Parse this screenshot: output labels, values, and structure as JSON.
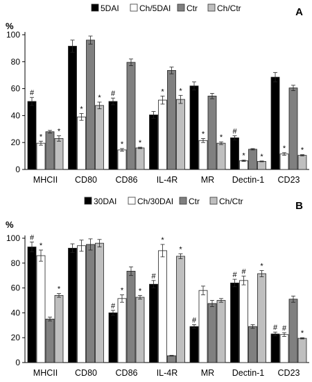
{
  "chart_data": [
    {
      "type": "bar",
      "panel_label": "A",
      "unit_label": "%",
      "categories": [
        "MHCII",
        "CD80",
        "CD86",
        "IL-4R",
        "MR",
        "Dectin-1",
        "CD23"
      ],
      "ylim": [
        0,
        100
      ],
      "yticks": [
        "0",
        "20",
        "40",
        "60",
        "80",
        "100"
      ],
      "legend_placement": "top",
      "grid": false,
      "series": [
        {
          "name": "5DAI",
          "color": "#000000",
          "values": [
            50.5,
            91.5,
            50.5,
            40.5,
            62,
            23.5,
            68.5
          ],
          "errors": [
            3,
            4.5,
            2.5,
            2.5,
            3,
            1.5,
            3.5
          ],
          "marks": [
            "#",
            "",
            "#",
            "",
            "",
            "#",
            ""
          ]
        },
        {
          "name": "Ch/5DAI",
          "color": "#ffffff",
          "values": [
            19.5,
            39,
            14.5,
            51.5,
            21.5,
            6.5,
            11.5
          ],
          "errors": [
            1.5,
            2.5,
            1,
            3,
            1.5,
            0.5,
            1
          ],
          "marks": [
            "*",
            "*",
            "*",
            "*",
            "*",
            "*",
            "*"
          ]
        },
        {
          "name": "Ctr",
          "color": "#808080",
          "values": [
            28,
            96,
            79.5,
            73.5,
            54.5,
            15,
            60.5
          ],
          "errors": [
            1,
            3,
            2.5,
            2.5,
            2,
            0.5,
            2
          ],
          "marks": [
            "",
            "",
            "",
            "",
            "",
            "",
            ""
          ]
        },
        {
          "name": "Ch/Ctr",
          "color": "#bfbfbf",
          "values": [
            23,
            47.5,
            16,
            52,
            19.5,
            6,
            10.5
          ],
          "errors": [
            2,
            2.5,
            0.5,
            3,
            1,
            0.3,
            0.5
          ],
          "marks": [
            "*",
            "*",
            "*",
            "*",
            "*",
            "*",
            "*"
          ]
        }
      ]
    },
    {
      "type": "bar",
      "panel_label": "B",
      "unit_label": "%",
      "categories": [
        "MHCII",
        "CD80",
        "CD86",
        "IL-4R",
        "MR",
        "Dectin-1",
        "CD23"
      ],
      "ylim": [
        0,
        100
      ],
      "yticks": [
        "0",
        "20",
        "40",
        "60",
        "80",
        "100"
      ],
      "legend_placement": "top",
      "grid": false,
      "series": [
        {
          "name": "30DAI",
          "color": "#000000",
          "values": [
            93,
            92,
            40,
            63,
            29,
            64,
            23
          ],
          "errors": [
            4,
            3.5,
            2,
            3,
            1.5,
            3,
            1.5
          ],
          "marks": [
            "#",
            "",
            "#",
            "#",
            "#",
            "#",
            "#"
          ]
        },
        {
          "name": "Ch/30DAI",
          "color": "#ffffff",
          "values": [
            86,
            94,
            51.5,
            90,
            58,
            66,
            22.5
          ],
          "errors": [
            4.5,
            4.5,
            3,
            5,
            3.5,
            3.5,
            1.5
          ],
          "marks": [
            "*",
            "",
            "*",
            "*",
            "",
            "#",
            "#"
          ]
        },
        {
          "name": "Ctr",
          "color": "#808080",
          "values": [
            35,
            95,
            73.5,
            5.5,
            47.5,
            29,
            51
          ],
          "errors": [
            1.5,
            4.5,
            3.5,
            0.3,
            2.5,
            1.5,
            2.5
          ],
          "marks": [
            "",
            "",
            "",
            "",
            "",
            "",
            ""
          ]
        },
        {
          "name": "Ch/Ctr",
          "color": "#bfbfbf",
          "values": [
            54,
            96,
            52.5,
            85.5,
            50,
            71.5,
            19.5
          ],
          "errors": [
            1.5,
            3,
            1.5,
            2,
            1.5,
            2.5,
            0.5
          ],
          "marks": [
            "*",
            "",
            "*",
            "*",
            "",
            "*",
            "*"
          ]
        }
      ]
    }
  ]
}
